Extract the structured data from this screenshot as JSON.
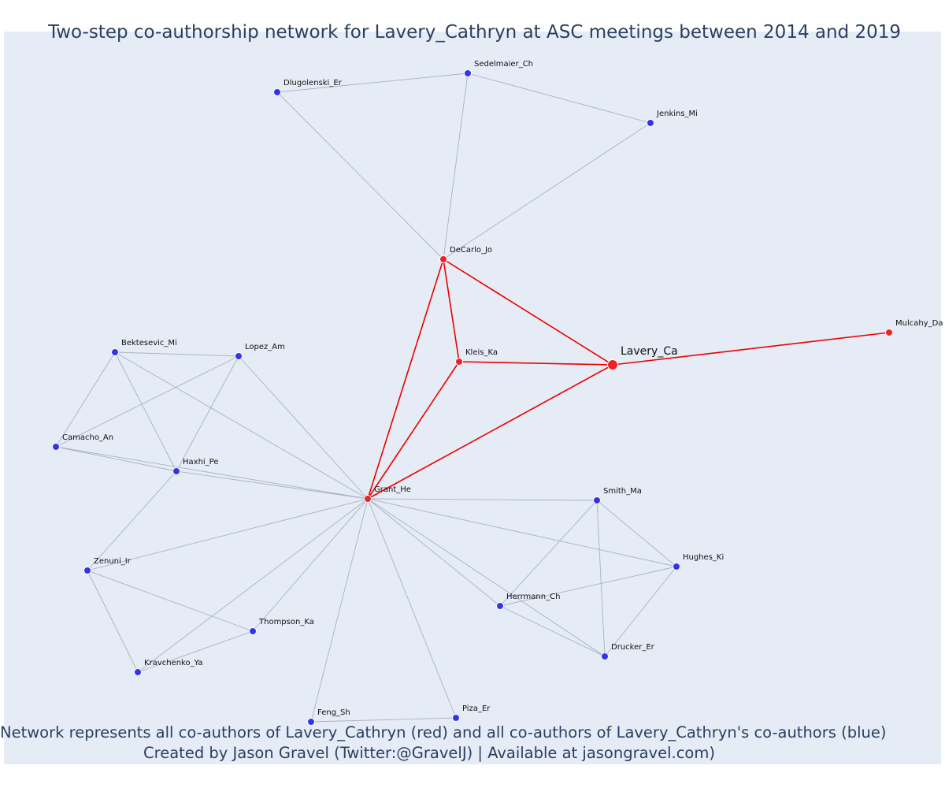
{
  "title": "Two-step co-authorship network for Lavery_Cathryn at ASC meetings between 2014 and 2019",
  "caption": {
    "line1": "Network represents all co-authors of Lavery_Cathryn (red) and all co-authors of Lavery_Cathryn's co-authors (blue)",
    "line2": "Created by Jason Gravel (Twitter:@GravelJ) | Available at jasongravel.com)"
  },
  "colors": {
    "background": "#e5ecf6",
    "first_step": "#ee2222",
    "second_step": "#3333ee",
    "edge_default": "#aab0c4",
    "edge_first_step": "#ee0000",
    "text": "#2a3f5f"
  },
  "nodes": [
    {
      "id": "Lavery_Ca",
      "label": "Lavery_Ca",
      "group": "focus"
    },
    {
      "id": "DeCarlo_Jo",
      "label": "DeCarlo_Jo",
      "group": "coauthor"
    },
    {
      "id": "Kleis_Ka",
      "label": "Kleis_Ka",
      "group": "coauthor"
    },
    {
      "id": "Mulcahy_Da",
      "label": "Mulcahy_Da",
      "group": "coauthor"
    },
    {
      "id": "Grant_He",
      "label": "Grant_He",
      "group": "coauthor"
    },
    {
      "id": "Sedelmaier_Ch",
      "label": "Sedelmaier_Ch",
      "group": "second"
    },
    {
      "id": "Dlugolenski_Er",
      "label": "Dlugolenski_Er",
      "group": "second"
    },
    {
      "id": "Jenkins_Mi",
      "label": "Jenkins_Mi",
      "group": "second"
    },
    {
      "id": "Bektesevic_Mi",
      "label": "Bektesevic_Mi",
      "group": "second"
    },
    {
      "id": "Lopez_Am",
      "label": "Lopez_Am",
      "group": "second"
    },
    {
      "id": "Camacho_An",
      "label": "Camacho_An",
      "group": "second"
    },
    {
      "id": "Haxhi_Pe",
      "label": "Haxhi_Pe",
      "group": "second"
    },
    {
      "id": "Zenuni_Ir",
      "label": "Zenuni_Ir",
      "group": "second"
    },
    {
      "id": "Thompson_Ka",
      "label": "Thompson_Ka",
      "group": "second"
    },
    {
      "id": "Kravchenko_Ya",
      "label": "Kravchenko_Ya",
      "group": "second"
    },
    {
      "id": "Feng_Sh",
      "label": "Feng_Sh",
      "group": "second"
    },
    {
      "id": "Piza_Er",
      "label": "Piza_Er",
      "group": "second"
    },
    {
      "id": "Smith_Ma",
      "label": "Smith_Ma",
      "group": "second"
    },
    {
      "id": "Hughes_Ki",
      "label": "Hughes_Ki",
      "group": "second"
    },
    {
      "id": "Herrmann_Ch",
      "label": "Herrmann_Ch",
      "group": "second"
    },
    {
      "id": "Drucker_Er",
      "label": "Drucker_Er",
      "group": "second"
    }
  ],
  "edges": [
    {
      "from": "Lavery_Ca",
      "to": "DeCarlo_Jo",
      "type": "first"
    },
    {
      "from": "Lavery_Ca",
      "to": "Kleis_Ka",
      "type": "first"
    },
    {
      "from": "Lavery_Ca",
      "to": "Mulcahy_Da",
      "type": "first"
    },
    {
      "from": "Lavery_Ca",
      "to": "Grant_He",
      "type": "first"
    },
    {
      "from": "DeCarlo_Jo",
      "to": "Kleis_Ka",
      "type": "first"
    },
    {
      "from": "DeCarlo_Jo",
      "to": "Grant_He",
      "type": "first"
    },
    {
      "from": "Kleis_Ka",
      "to": "Grant_He",
      "type": "first"
    },
    {
      "from": "DeCarlo_Jo",
      "to": "Dlugolenski_Er",
      "type": "second"
    },
    {
      "from": "DeCarlo_Jo",
      "to": "Sedelmaier_Ch",
      "type": "second"
    },
    {
      "from": "DeCarlo_Jo",
      "to": "Jenkins_Mi",
      "type": "second"
    },
    {
      "from": "Dlugolenski_Er",
      "to": "Sedelmaier_Ch",
      "type": "second"
    },
    {
      "from": "Sedelmaier_Ch",
      "to": "Jenkins_Mi",
      "type": "second"
    },
    {
      "from": "Grant_He",
      "to": "Bektesevic_Mi",
      "type": "second"
    },
    {
      "from": "Grant_He",
      "to": "Lopez_Am",
      "type": "second"
    },
    {
      "from": "Grant_He",
      "to": "Camacho_An",
      "type": "second"
    },
    {
      "from": "Grant_He",
      "to": "Haxhi_Pe",
      "type": "second"
    },
    {
      "from": "Grant_He",
      "to": "Zenuni_Ir",
      "type": "second"
    },
    {
      "from": "Grant_He",
      "to": "Thompson_Ka",
      "type": "second"
    },
    {
      "from": "Grant_He",
      "to": "Kravchenko_Ya",
      "type": "second"
    },
    {
      "from": "Grant_He",
      "to": "Feng_Sh",
      "type": "second"
    },
    {
      "from": "Grant_He",
      "to": "Piza_Er",
      "type": "second"
    },
    {
      "from": "Grant_He",
      "to": "Smith_Ma",
      "type": "second"
    },
    {
      "from": "Grant_He",
      "to": "Hughes_Ki",
      "type": "second"
    },
    {
      "from": "Grant_He",
      "to": "Herrmann_Ch",
      "type": "second"
    },
    {
      "from": "Grant_He",
      "to": "Drucker_Er",
      "type": "second"
    },
    {
      "from": "Bektesevic_Mi",
      "to": "Lopez_Am",
      "type": "second"
    },
    {
      "from": "Bektesevic_Mi",
      "to": "Camacho_An",
      "type": "second"
    },
    {
      "from": "Bektesevic_Mi",
      "to": "Haxhi_Pe",
      "type": "second"
    },
    {
      "from": "Lopez_Am",
      "to": "Camacho_An",
      "type": "second"
    },
    {
      "from": "Lopez_Am",
      "to": "Haxhi_Pe",
      "type": "second"
    },
    {
      "from": "Camacho_An",
      "to": "Haxhi_Pe",
      "type": "second"
    },
    {
      "from": "Haxhi_Pe",
      "to": "Zenuni_Ir",
      "type": "second"
    },
    {
      "from": "Zenuni_Ir",
      "to": "Thompson_Ka",
      "type": "second"
    },
    {
      "from": "Zenuni_Ir",
      "to": "Kravchenko_Ya",
      "type": "second"
    },
    {
      "from": "Thompson_Ka",
      "to": "Kravchenko_Ya",
      "type": "second"
    },
    {
      "from": "Feng_Sh",
      "to": "Piza_Er",
      "type": "second"
    },
    {
      "from": "Smith_Ma",
      "to": "Hughes_Ki",
      "type": "second"
    },
    {
      "from": "Smith_Ma",
      "to": "Herrmann_Ch",
      "type": "second"
    },
    {
      "from": "Smith_Ma",
      "to": "Drucker_Er",
      "type": "second"
    },
    {
      "from": "Hughes_Ki",
      "to": "Herrmann_Ch",
      "type": "second"
    },
    {
      "from": "Hughes_Ki",
      "to": "Drucker_Er",
      "type": "second"
    },
    {
      "from": "Herrmann_Ch",
      "to": "Drucker_Er",
      "type": "second"
    }
  ]
}
